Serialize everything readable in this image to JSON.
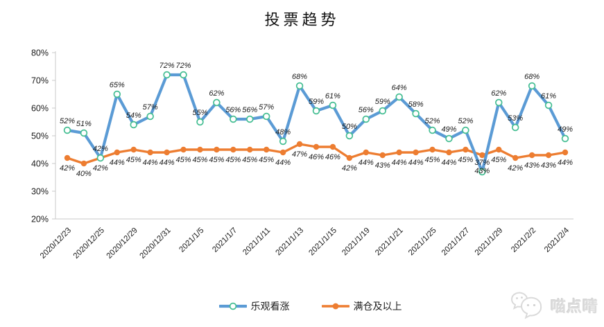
{
  "title": "投票趋势",
  "watermark": {
    "text": "喵点晴"
  },
  "axes": {
    "y_tick_labels": [
      "80%",
      "70%",
      "60%",
      "50%",
      "40%",
      "30%",
      "20%"
    ]
  },
  "chart_data": {
    "type": "line",
    "title": "投票趋势",
    "xlabel": "",
    "ylabel": "",
    "grid": false,
    "legend_position": "bottom",
    "y_axis": {
      "min": 20,
      "max": 80,
      "step": 10,
      "format": "percent"
    },
    "points_count": 31,
    "x_tick_every": 2,
    "x_tick_labels": [
      "2020/12/23",
      "2020/12/25",
      "2020/12/29",
      "2020/12/31",
      "2021/1/5",
      "2021/1/7",
      "2021/1/11",
      "2021/1/13",
      "2021/1/15",
      "2021/1/19",
      "2021/1/21",
      "2021/1/25",
      "2021/1/27",
      "2021/1/29",
      "2021/2/2",
      "2021/2/4"
    ],
    "series": [
      {
        "name": "乐观看涨",
        "color": "#5B9BD5",
        "marker": "open-circle",
        "marker_color": "#44BE92",
        "data_labels": true,
        "label_unit": "%",
        "values": [
          52,
          51,
          42,
          65,
          54,
          57,
          72,
          72,
          55,
          62,
          56,
          56,
          57,
          48,
          68,
          59,
          61,
          50,
          56,
          59,
          64,
          58,
          52,
          49,
          52,
          37,
          62,
          53,
          68,
          61,
          49
        ]
      },
      {
        "name": "满仓及以上",
        "color": "#ED7D31",
        "marker": "filled-circle",
        "marker_color": "#ED7D31",
        "data_labels": true,
        "label_unit": "%",
        "values": [
          42,
          40,
          42,
          44,
          45,
          44,
          44,
          45,
          45,
          45,
          45,
          45,
          45,
          44,
          47,
          46,
          46,
          42,
          44,
          43,
          44,
          44,
          45,
          44,
          45,
          43,
          45,
          42,
          43,
          43,
          44
        ]
      }
    ]
  }
}
